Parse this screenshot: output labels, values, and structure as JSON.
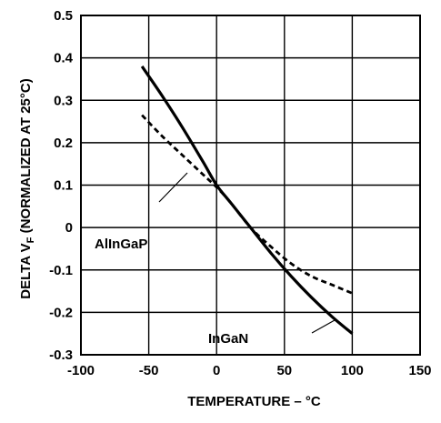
{
  "chart_data": {
    "type": "line",
    "title": "",
    "xlabel": "TEMPERATURE – °C",
    "ylabel": {
      "prefix": "DELTA V",
      "subscript": "F",
      "suffix": " (NORMALIZED AT 25°C)"
    },
    "xlim": [
      -100,
      150
    ],
    "ylim": [
      -0.3,
      0.5
    ],
    "x_ticks": [
      "-100",
      "-50",
      "0",
      "50",
      "100",
      "150"
    ],
    "y_ticks": [
      "0.5",
      "0.4",
      "0.3",
      "0.2",
      "0.1",
      "0",
      "-0.1",
      "-0.2",
      "-0.3"
    ],
    "grid": true,
    "legend": "none",
    "series": [
      {
        "name": "InGaN",
        "style": "solid",
        "color": "#000000",
        "x": [
          -55,
          -40,
          -25,
          -10,
          0,
          10,
          25,
          40,
          55,
          70,
          85,
          100
        ],
        "y": [
          0.38,
          0.31,
          0.235,
          0.155,
          0.1,
          0.06,
          0.0,
          -0.06,
          -0.115,
          -0.165,
          -0.21,
          -0.25
        ]
      },
      {
        "name": "AlInGaP",
        "style": "dashed",
        "color": "#000000",
        "x": [
          -55,
          -40,
          -25,
          -10,
          0,
          10,
          25,
          40,
          55,
          70,
          85,
          100
        ],
        "y": [
          0.265,
          0.215,
          0.17,
          0.125,
          0.095,
          0.06,
          0.0,
          -0.045,
          -0.085,
          -0.115,
          -0.135,
          -0.155
        ]
      }
    ]
  }
}
